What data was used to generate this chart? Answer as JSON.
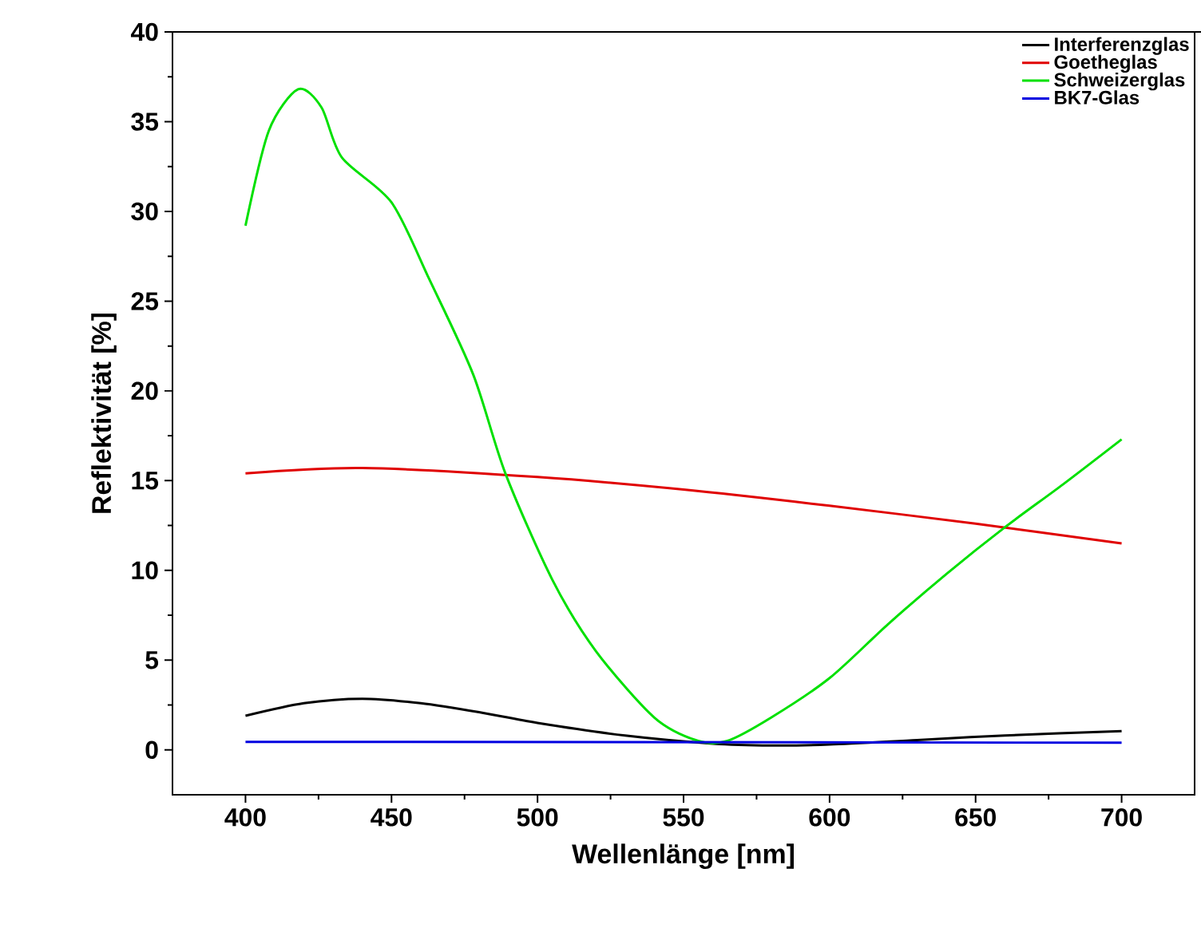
{
  "chart_data": {
    "type": "line",
    "xlabel": "Wellenlänge [nm]",
    "ylabel": "Reflektivität [%]",
    "xlim": [
      375,
      725
    ],
    "ylim": [
      -2.5,
      40
    ],
    "xticks": [
      400,
      450,
      500,
      550,
      600,
      650,
      700
    ],
    "yticks": [
      0,
      5,
      10,
      15,
      20,
      25,
      30,
      35,
      40
    ],
    "legend": "top right",
    "grid": false,
    "series": [
      {
        "name": "Interferenzglas",
        "color": "#000000",
        "x": [
          400,
          420,
          440,
          460,
          480,
          500,
          530,
          560,
          580,
          600,
          630,
          660,
          700
        ],
        "values": [
          1.9,
          2.6,
          2.85,
          2.6,
          2.1,
          1.5,
          0.8,
          0.35,
          0.25,
          0.3,
          0.55,
          0.8,
          1.05
        ]
      },
      {
        "name": "Goetheglas",
        "color": "#e00000",
        "x": [
          400,
          440,
          500,
          550,
          600,
          650,
          700
        ],
        "values": [
          15.4,
          15.7,
          15.2,
          14.5,
          13.6,
          12.6,
          11.5
        ]
      },
      {
        "name": "Schweizerglas",
        "color": "#00e000",
        "x": [
          400,
          408,
          418,
          426,
          433,
          450,
          463,
          478,
          489,
          505,
          520,
          540,
          555,
          565,
          580,
          600,
          620,
          640,
          660,
          680,
          700
        ],
        "values": [
          29.2,
          34.5,
          36.8,
          35.8,
          33.0,
          30.5,
          26.2,
          20.9,
          15.4,
          9.5,
          5.5,
          1.8,
          0.5,
          0.5,
          1.8,
          4.0,
          7.0,
          9.8,
          12.4,
          14.8,
          17.3
        ]
      },
      {
        "name": "BK7-Glas",
        "color": "#0000e0",
        "x": [
          400,
          700
        ],
        "values": [
          0.45,
          0.4
        ]
      }
    ]
  }
}
